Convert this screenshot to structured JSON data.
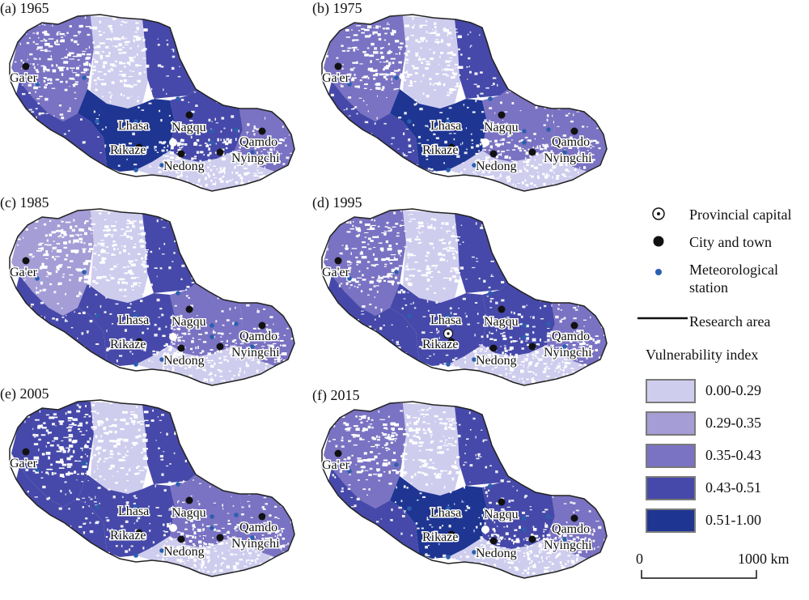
{
  "panels": [
    {
      "title": "(a) 1965",
      "cities": {
        "gaer": "Ga'er",
        "lhasa": "Lhasa",
        "nagqu": "Nagqu",
        "qamdo": "Qamdo",
        "rikaze": "Rikaze",
        "nedong": "Nedong",
        "nyingchi": "Nyingchi"
      }
    },
    {
      "title": "(b) 1975",
      "cities": {
        "gaer": "Ga'er",
        "lhasa": "Lhasa",
        "nagqu": "Nagqu",
        "qamdo": "Qamdo",
        "rikaze": "Rikaze",
        "nedong": "Nedong",
        "nyingchi": "Nyingchi"
      }
    },
    {
      "title": "(c) 1985",
      "cities": {
        "gaer": "Ga'er",
        "lhasa": "Lhasa",
        "nagqu": "Nagqu",
        "qamdo": "Qamdo",
        "rikaze": "Rikaze",
        "nedong": "Nedong",
        "nyingchi": "Nyingchi"
      }
    },
    {
      "title": "(d) 1995",
      "cities": {
        "gaer": "Ga'er",
        "lhasa": "Lhasa",
        "nagqu": "Nagqu",
        "qamdo": "Qamdo",
        "rikaze": "Rikaze",
        "nedong": "Nedong",
        "nyingchi": "Nyingchi"
      }
    },
    {
      "title": "(e) 2005",
      "cities": {
        "gaer": "Ga'er",
        "lhasa": "Lhasa",
        "nagqu": "Nagqu",
        "qamdo": "Qamdo",
        "rikaze": "Rikaze",
        "nedong": "Nedong",
        "nyingchi": "Nyingchi"
      }
    },
    {
      "title": "(f) 2015",
      "cities": {
        "gaer": "Ga'er",
        "lhasa": "Lhasa",
        "nagqu": "Nagqu",
        "qamdo": "Qamdo",
        "rikaze": "Rikaze",
        "nedong": "Nedong",
        "nyingchi": "Nyingchi"
      }
    }
  ],
  "legend": {
    "provincial_capital": "Provincial capital",
    "city_and_town": "City and town",
    "meteorological_station_line1": "Meteorological",
    "meteorological_station_line2": "station",
    "research_area": "Research area",
    "vulnerability_title": "Vulnerability index",
    "classes": [
      {
        "label": "0.00-0.29",
        "color": "#cfcdee"
      },
      {
        "label": "0.29-0.35",
        "color": "#a49dd6"
      },
      {
        "label": "0.35-0.43",
        "color": "#7a72c2"
      },
      {
        "label": "0.43-0.51",
        "color": "#4649a9"
      },
      {
        "label": "0.51-1.00",
        "color": "#1e3592"
      }
    ],
    "scale_start": "0",
    "scale_end": "1000 km"
  },
  "colors": {
    "city": "#111111",
    "station": "#2b5fae",
    "boundary": "#222222"
  }
}
